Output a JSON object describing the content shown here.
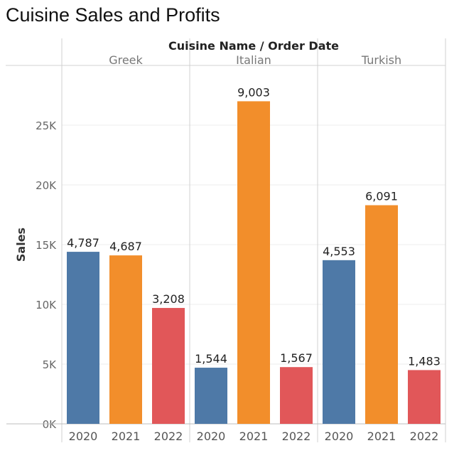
{
  "chart_data": {
    "type": "bar",
    "title": "Cuisine Sales and Profits",
    "header_label": "Cuisine Name / Order Date",
    "ylabel": "Sales",
    "ylim": [
      0,
      30000
    ],
    "yticks": [
      0,
      5000,
      10000,
      15000,
      20000,
      25000
    ],
    "ytick_labels": [
      "0K",
      "5K",
      "10K",
      "15K",
      "20K",
      "25K"
    ],
    "grid": true,
    "year_colors": {
      "2020": "#4e79a7",
      "2021": "#f28e2b",
      "2022": "#e15759"
    },
    "groups": [
      {
        "name": "Greek",
        "bars": [
          {
            "year": "2020",
            "value": 14400,
            "label": "4,787"
          },
          {
            "year": "2021",
            "value": 14100,
            "label": "4,687"
          },
          {
            "year": "2022",
            "value": 9700,
            "label": "3,208"
          }
        ]
      },
      {
        "name": "Italian",
        "bars": [
          {
            "year": "2020",
            "value": 4700,
            "label": "1,544"
          },
          {
            "year": "2021",
            "value": 27000,
            "label": "9,003"
          },
          {
            "year": "2022",
            "value": 4750,
            "label": "1,567"
          }
        ]
      },
      {
        "name": "Turkish",
        "bars": [
          {
            "year": "2020",
            "value": 13700,
            "label": "4,553"
          },
          {
            "year": "2021",
            "value": 18300,
            "label": "6,091"
          },
          {
            "year": "2022",
            "value": 4500,
            "label": "1,483"
          }
        ]
      }
    ]
  }
}
